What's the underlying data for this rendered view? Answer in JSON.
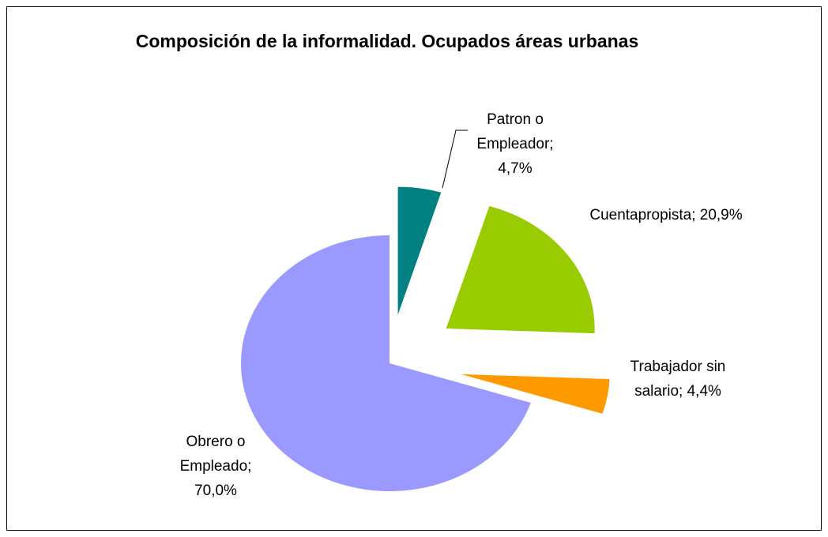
{
  "chart_data": {
    "type": "pie",
    "title": "Composición de la informalidad. Ocupados  áreas urbanas",
    "values": [
      4.7,
      20.9,
      4.4,
      70.0
    ],
    "value_labels": [
      "Patron o Empleador; 4,7%",
      "Cuentapropista; 20,9%",
      "Trabajador sin salario; 4,4%",
      "Obrero o Empleado; 70,0%"
    ],
    "colors": [
      "#008080",
      "#99cc00",
      "#ff9900",
      "#9999ff"
    ]
  }
}
